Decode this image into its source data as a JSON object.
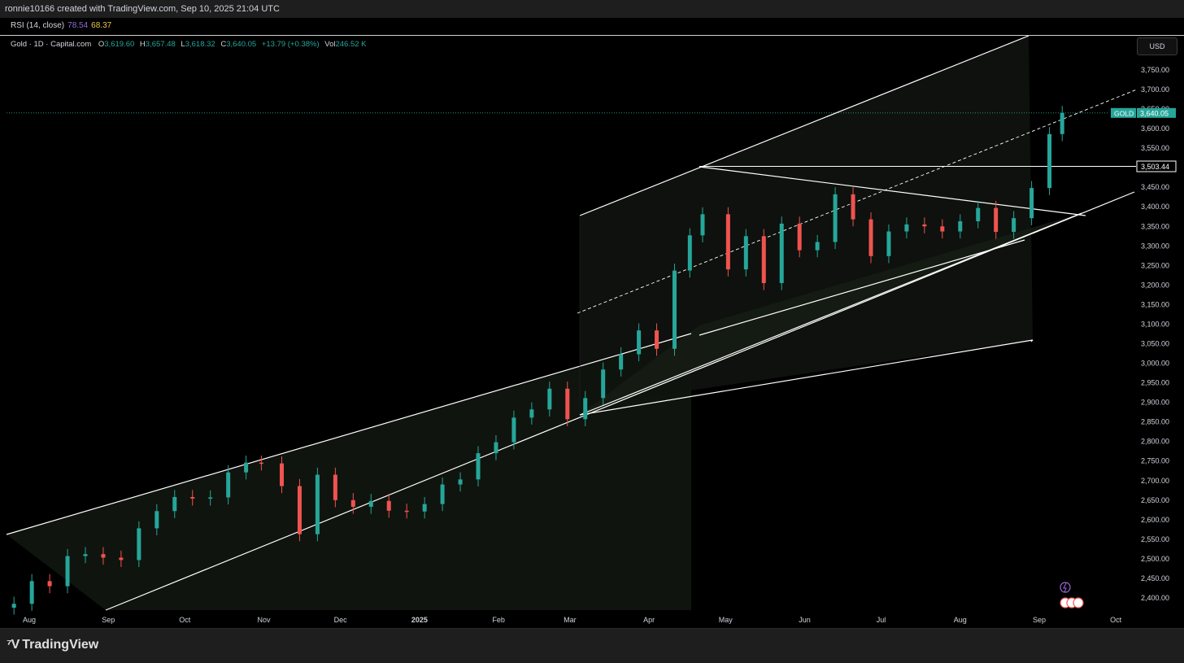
{
  "header": {
    "attribution": "ronnie10166 created with TradingView.com, Sep 10, 2025 21:04 UTC"
  },
  "rsi": {
    "label": "RSI (14, close)",
    "value1": "78.54",
    "value2": "68.37"
  },
  "legend": {
    "symbol": "Gold · 1D · Capital.com",
    "o_label": "O",
    "o_value": "3,619.60",
    "h_label": "H",
    "h_value": "3,657.48",
    "l_label": "L",
    "l_value": "3,618.32",
    "c_label": "C",
    "c_value": "3,640.05",
    "change": "+13.79 (+0.38%)",
    "vol_label": "Vol",
    "vol_value": "246.52 K"
  },
  "currency": "USD",
  "price_tag": {
    "symbol": "GOLD",
    "value": "3,640.05"
  },
  "level_tag": "3,503.44",
  "footer": {
    "logo_text": "TradingView"
  },
  "colors": {
    "up": "#26a69a",
    "down": "#ef5350",
    "line": "#ffffff",
    "background": "#000000"
  },
  "chart_data": {
    "type": "candlestick",
    "y_ticks": [
      "2,400.00",
      "2,450.00",
      "2,500.00",
      "2,550.00",
      "2,600.00",
      "2,650.00",
      "2,700.00",
      "2,750.00",
      "2,800.00",
      "2,850.00",
      "2,900.00",
      "2,950.00",
      "3,000.00",
      "3,050.00",
      "3,100.00",
      "3,150.00",
      "3,200.00",
      "3,250.00",
      "3,300.00",
      "3,350.00",
      "3,400.00",
      "3,450.00",
      "3,500.00",
      "3,550.00",
      "3,600.00",
      "3,650.00",
      "3,700.00",
      "3,750.00"
    ],
    "y_tick_values": [
      2400,
      2450,
      2500,
      2550,
      2600,
      2650,
      2700,
      2750,
      2800,
      2850,
      2900,
      2950,
      3000,
      3050,
      3100,
      3150,
      3200,
      3250,
      3300,
      3350,
      3400,
      3450,
      3500,
      3550,
      3600,
      3650,
      3700,
      3750
    ],
    "x_ticks": [
      "Aug",
      "Sep",
      "Oct",
      "Nov",
      "Dec",
      "2025",
      "Feb",
      "Mar",
      "Apr",
      "May",
      "Jun",
      "Jul",
      "Aug",
      "Sep",
      "Oct"
    ],
    "x_tick_dates": [
      "2024-08-01",
      "2024-09-01",
      "2024-10-01",
      "2024-11-01",
      "2024-12-01",
      "2025-01-01",
      "2025-02-01",
      "2025-03-01",
      "2025-04-01",
      "2025-05-01",
      "2025-06-01",
      "2025-07-01",
      "2025-08-01",
      "2025-09-01",
      "2025-10-01"
    ],
    "last_close": 3640.05,
    "horizontal_level": 3503.44,
    "series": [
      {
        "date": "2024-07-26",
        "close": 2385
      },
      {
        "date": "2024-08-02",
        "close": 2443
      },
      {
        "date": "2024-08-09",
        "close": 2430
      },
      {
        "date": "2024-08-16",
        "close": 2507
      },
      {
        "date": "2024-08-23",
        "close": 2512
      },
      {
        "date": "2024-08-30",
        "close": 2503
      },
      {
        "date": "2024-09-06",
        "close": 2497
      },
      {
        "date": "2024-09-13",
        "close": 2578
      },
      {
        "date": "2024-09-20",
        "close": 2622
      },
      {
        "date": "2024-09-27",
        "close": 2658
      },
      {
        "date": "2024-10-04",
        "close": 2654
      },
      {
        "date": "2024-10-11",
        "close": 2657
      },
      {
        "date": "2024-10-18",
        "close": 2721
      },
      {
        "date": "2024-10-25",
        "close": 2746
      },
      {
        "date": "2024-10-31",
        "close": 2744
      },
      {
        "date": "2024-11-08",
        "close": 2686
      },
      {
        "date": "2024-11-15",
        "close": 2563
      },
      {
        "date": "2024-11-22",
        "close": 2715
      },
      {
        "date": "2024-11-29",
        "close": 2650
      },
      {
        "date": "2024-12-06",
        "close": 2633
      },
      {
        "date": "2024-12-13",
        "close": 2648
      },
      {
        "date": "2024-12-20",
        "close": 2623
      },
      {
        "date": "2024-12-27",
        "close": 2621
      },
      {
        "date": "2025-01-03",
        "close": 2640
      },
      {
        "date": "2025-01-10",
        "close": 2690
      },
      {
        "date": "2025-01-17",
        "close": 2703
      },
      {
        "date": "2025-01-24",
        "close": 2770
      },
      {
        "date": "2025-01-31",
        "close": 2798
      },
      {
        "date": "2025-02-07",
        "close": 2861
      },
      {
        "date": "2025-02-14",
        "close": 2882
      },
      {
        "date": "2025-02-21",
        "close": 2935
      },
      {
        "date": "2025-02-28",
        "close": 2857
      },
      {
        "date": "2025-03-07",
        "close": 2911
      },
      {
        "date": "2025-03-14",
        "close": 2984
      },
      {
        "date": "2025-03-21",
        "close": 3023
      },
      {
        "date": "2025-03-28",
        "close": 3084
      },
      {
        "date": "2025-04-04",
        "close": 3037
      },
      {
        "date": "2025-04-11",
        "close": 3237
      },
      {
        "date": "2025-04-17",
        "close": 3327
      },
      {
        "date": "2025-04-22",
        "close": 3381
      },
      {
        "date": "2025-05-02",
        "close": 3240
      },
      {
        "date": "2025-05-09",
        "close": 3325
      },
      {
        "date": "2025-05-16",
        "close": 3205
      },
      {
        "date": "2025-05-23",
        "close": 3357
      },
      {
        "date": "2025-05-30",
        "close": 3289
      },
      {
        "date": "2025-06-06",
        "close": 3310
      },
      {
        "date": "2025-06-13",
        "close": 3432
      },
      {
        "date": "2025-06-20",
        "close": 3368
      },
      {
        "date": "2025-06-27",
        "close": 3274
      },
      {
        "date": "2025-07-04",
        "close": 3337
      },
      {
        "date": "2025-07-11",
        "close": 3355
      },
      {
        "date": "2025-07-18",
        "close": 3350
      },
      {
        "date": "2025-07-25",
        "close": 3337
      },
      {
        "date": "2025-08-01",
        "close": 3363
      },
      {
        "date": "2025-08-08",
        "close": 3397
      },
      {
        "date": "2025-08-15",
        "close": 3336
      },
      {
        "date": "2025-08-22",
        "close": 3371
      },
      {
        "date": "2025-08-29",
        "close": 3448
      },
      {
        "date": "2025-09-05",
        "close": 3586
      },
      {
        "date": "2025-09-10",
        "close": 3640
      }
    ]
  }
}
